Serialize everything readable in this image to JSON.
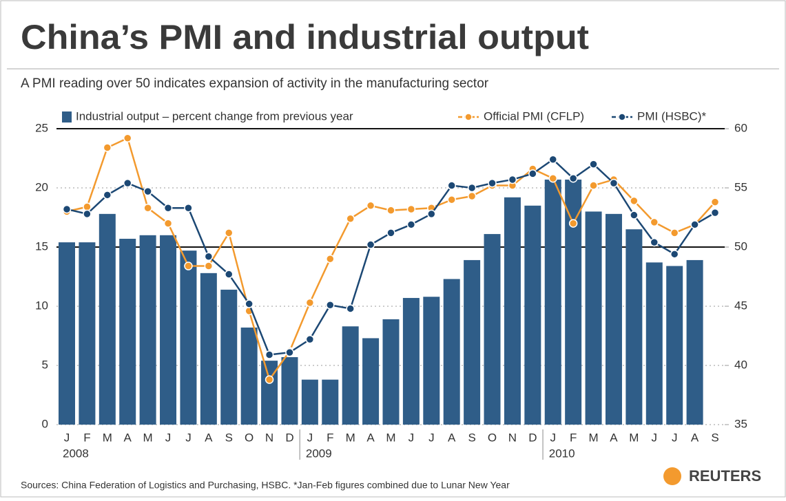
{
  "chart_data": {
    "type": "bar_line",
    "title": "China’s PMI and industrial output",
    "subtitle": "A PMI reading over 50 indicates expansion of activity in the manufacturing sector",
    "source": "Sources: China Federation of Logistics and Purchasing, HSBC. *Jan-Feb figures combined due to Lunar New Year",
    "brand": "REUTERS",
    "categories": [
      "J",
      "F",
      "M",
      "A",
      "M",
      "J",
      "J",
      "A",
      "S",
      "O",
      "N",
      "D",
      "J",
      "F",
      "M",
      "A",
      "M",
      "J",
      "J",
      "A",
      "S",
      "O",
      "N",
      "D",
      "J",
      "F",
      "M",
      "A",
      "M",
      "J",
      "J",
      "A",
      "S"
    ],
    "year_groups": [
      "2008",
      "2009",
      "2010"
    ],
    "series": [
      {
        "name": "Industrial output – percent change from previous year",
        "type": "bar",
        "color": "#2f5d88",
        "values": [
          15.4,
          15.4,
          17.8,
          15.7,
          16.0,
          16.0,
          14.7,
          12.8,
          11.4,
          8.2,
          5.4,
          5.7,
          3.8,
          3.8,
          8.3,
          7.3,
          8.9,
          10.7,
          10.8,
          12.3,
          13.9,
          16.1,
          19.2,
          18.5,
          20.7,
          20.7,
          18.0,
          17.8,
          16.5,
          13.7,
          13.4,
          13.9,
          null
        ]
      },
      {
        "name": "Official PMI (CFLP)",
        "type": "line",
        "axis": "y2",
        "color": "#f39a2e",
        "values": [
          53.0,
          53.4,
          58.4,
          59.2,
          53.3,
          52.0,
          48.4,
          48.4,
          51.2,
          44.6,
          38.8,
          41.2,
          45.3,
          49.0,
          52.4,
          53.5,
          53.1,
          53.2,
          53.3,
          54.0,
          54.3,
          55.2,
          55.2,
          56.6,
          55.8,
          52.0,
          55.2,
          55.7,
          53.9,
          52.1,
          51.2,
          51.9,
          53.8
        ]
      },
      {
        "name": "PMI (HSBC)*",
        "type": "line",
        "axis": "y2",
        "color": "#1c4874",
        "values": [
          53.2,
          52.8,
          54.4,
          55.4,
          54.7,
          53.3,
          53.3,
          49.2,
          47.7,
          45.2,
          40.9,
          41.1,
          42.2,
          45.1,
          44.8,
          50.2,
          51.2,
          51.9,
          52.8,
          55.2,
          55.0,
          55.4,
          55.7,
          56.2,
          57.4,
          55.8,
          57.0,
          55.4,
          52.7,
          50.4,
          49.4,
          51.9,
          52.9
        ]
      }
    ],
    "ylim": [
      0,
      25
    ],
    "yticks": [
      0,
      5,
      10,
      15,
      20,
      25
    ],
    "y2lim": [
      35,
      60
    ],
    "y2ticks": [
      35,
      40,
      45,
      50,
      55,
      60
    ],
    "reference_y2": 50,
    "grid": true
  }
}
